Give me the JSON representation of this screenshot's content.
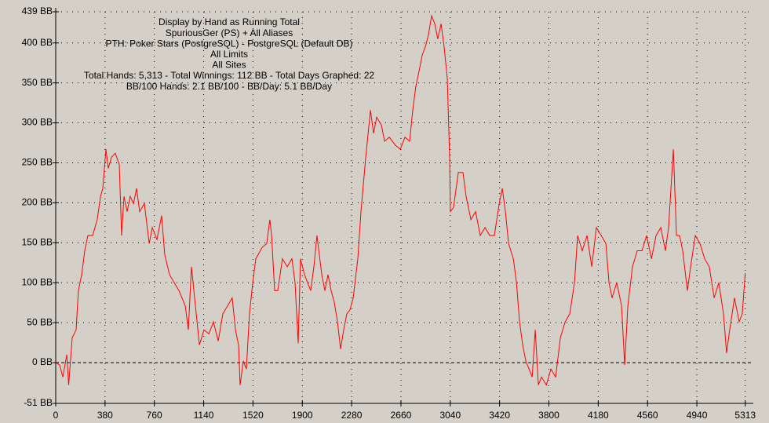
{
  "chart_data": {
    "type": "line",
    "title_lines": [
      "Display by Hand as Running Total",
      "SpuriousGer (PS) + All Aliases",
      "PTH: Poker Stars (PostgreSQL) - PostgreSQL (Default DB)",
      "All Limits",
      "All Sites",
      "Total Hands: 5,313 - Total Winnings: 112 BB - Total Days Graphed: 22",
      "BB/100 Hands: 2.1 BB/100 - BB/Day: 5.1 BB/Day"
    ],
    "color": "#ff0000",
    "grid": true,
    "xlim": [
      0,
      5375
    ],
    "ylim": [
      -51,
      439
    ],
    "xticks": [
      0,
      380,
      760,
      1140,
      1520,
      1900,
      2280,
      2660,
      3040,
      3420,
      3800,
      4180,
      4560,
      4940,
      5313
    ],
    "yticks": [
      {
        "value": -51,
        "label": "-51 BB"
      },
      {
        "value": 0,
        "label": "0 BB"
      },
      {
        "value": 50,
        "label": "50 BB"
      },
      {
        "value": 100,
        "label": "100 BB"
      },
      {
        "value": 150,
        "label": "150 BB"
      },
      {
        "value": 200,
        "label": "200 BB"
      },
      {
        "value": 250,
        "label": "250 BB"
      },
      {
        "value": 300,
        "label": "300 BB"
      },
      {
        "value": 350,
        "label": "350 BB"
      },
      {
        "value": 400,
        "label": "400 BB"
      },
      {
        "value": 439,
        "label": "439 BB"
      }
    ],
    "x": [
      0,
      30,
      55,
      85,
      100,
      127,
      157,
      175,
      200,
      224,
      248,
      284,
      320,
      345,
      363,
      387,
      405,
      430,
      459,
      490,
      508,
      526,
      550,
      574,
      599,
      623,
      647,
      683,
      720,
      744,
      780,
      816,
      840,
      877,
      913,
      950,
      998,
      1022,
      1046,
      1070,
      1107,
      1143,
      1180,
      1215,
      1252,
      1288,
      1324,
      1360,
      1385,
      1409,
      1421,
      1445,
      1469,
      1493,
      1518,
      1542,
      1590,
      1626,
      1650,
      1663,
      1687,
      1711,
      1747,
      1784,
      1820,
      1844,
      1868,
      1886,
      1917,
      1941,
      1965,
      1989,
      2013,
      2050,
      2074,
      2098,
      2122,
      2146,
      2171,
      2195,
      2219,
      2243,
      2267,
      2292,
      2328,
      2352,
      2389,
      2425,
      2449,
      2473,
      2510,
      2534,
      2570,
      2618,
      2655,
      2691,
      2727,
      2751,
      2775,
      2800,
      2824,
      2848,
      2872,
      2896,
      2920,
      2944,
      2969,
      2993,
      3017,
      3035,
      3041,
      3065,
      3102,
      3138,
      3162,
      3199,
      3235,
      3271,
      3308,
      3344,
      3380,
      3417,
      3441,
      3465,
      3489,
      3526,
      3550,
      3574,
      3598,
      3622,
      3647,
      3671,
      3695,
      3719,
      3743,
      3780,
      3816,
      3852,
      3888,
      3925,
      3961,
      3997,
      4021,
      4057,
      4094,
      4130,
      4166,
      4203,
      4239,
      4263,
      4287,
      4323,
      4360,
      4384,
      4408,
      4444,
      4481,
      4517,
      4553,
      4590,
      4626,
      4662,
      4698,
      4722,
      4759,
      4783,
      4807,
      4831,
      4867,
      4892,
      4928,
      4964,
      5000,
      5036,
      5073,
      5109,
      5145,
      5169,
      5193,
      5230,
      5266,
      5290,
      5313
    ],
    "values": [
      0,
      -3,
      -18,
      10,
      -28,
      31,
      41,
      90,
      110,
      140,
      159,
      159,
      179,
      208,
      218,
      267,
      243,
      257,
      262,
      248,
      159,
      208,
      189,
      208,
      199,
      218,
      189,
      199,
      149,
      169,
      154,
      184,
      135,
      110,
      100,
      90,
      71,
      41,
      120,
      81,
      22,
      41,
      36,
      51,
      27,
      61,
      71,
      81,
      41,
      22,
      -28,
      2,
      -8,
      61,
      100,
      130,
      144,
      149,
      179,
      159,
      90,
      90,
      130,
      120,
      130,
      100,
      24,
      130,
      110,
      100,
      90,
      120,
      159,
      110,
      90,
      110,
      90,
      76,
      51,
      17,
      41,
      61,
      66,
      81,
      130,
      189,
      257,
      316,
      287,
      307,
      297,
      277,
      282,
      272,
      267,
      282,
      277,
      316,
      346,
      365,
      385,
      395,
      410,
      434,
      424,
      405,
      424,
      395,
      356,
      257,
      189,
      194,
      238,
      238,
      208,
      179,
      189,
      159,
      169,
      159,
      159,
      199,
      218,
      189,
      149,
      130,
      100,
      51,
      22,
      2,
      -8,
      -18,
      41,
      -28,
      -18,
      -28,
      -8,
      -18,
      31,
      51,
      61,
      100,
      159,
      140,
      159,
      120,
      169,
      159,
      149,
      100,
      81,
      100,
      71,
      -3,
      71,
      120,
      140,
      140,
      159,
      130,
      159,
      169,
      140,
      169,
      267,
      159,
      159,
      140,
      90,
      120,
      159,
      149,
      130,
      120,
      81,
      100,
      61,
      12,
      41,
      81,
      51,
      61,
      112
    ]
  }
}
